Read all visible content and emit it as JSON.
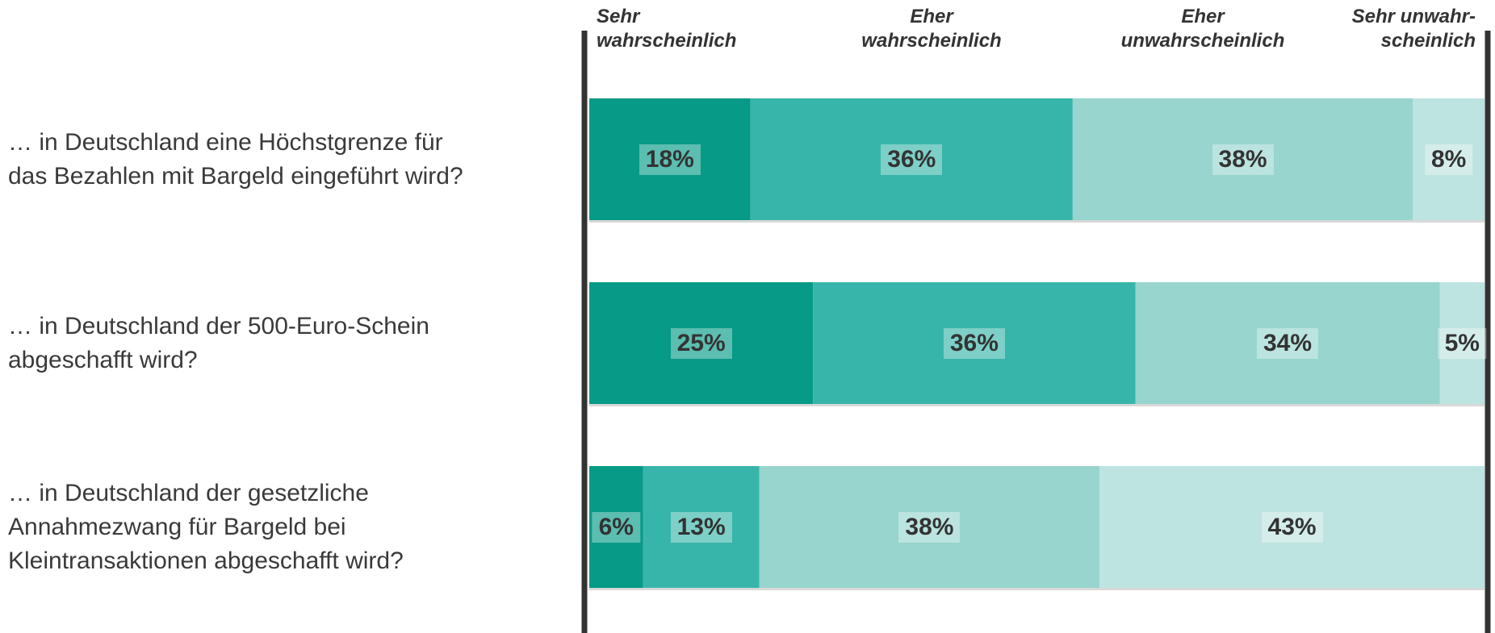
{
  "chart_data": {
    "type": "stacked-bar-horizontal",
    "categories": [
      "… in Deutschland eine Höchstgrenze für\ndas Bezahlen mit Bargeld eingeführt wird?",
      "… in Deutschland der 500-Euro-Schein\nabgeschafft wird?",
      "… in Deutschland der gesetzliche\nAnnahmezwang für Bargeld bei\nKleintransaktionen abgeschafft wird?"
    ],
    "xlim": [
      0,
      100
    ],
    "series": [
      {
        "name": "Sehr\nwahrscheinlich",
        "color": "#069a87",
        "values": [
          18,
          25,
          6
        ],
        "value_labels": [
          "18%",
          "25%",
          "6%"
        ]
      },
      {
        "name": "Eher\nwahrscheinlich",
        "color": "#38b5aa",
        "values": [
          36,
          36,
          13
        ],
        "value_labels": [
          "36%",
          "36%",
          "13%"
        ]
      },
      {
        "name": "Eher\nunwahrscheinlich",
        "color": "#97d5ce",
        "values": [
          38,
          34,
          38
        ],
        "value_labels": [
          "38%",
          "34%",
          "38%"
        ]
      },
      {
        "name": "Sehr unwahr-\nscheinlich",
        "color": "#bde4e0",
        "values": [
          8,
          5,
          43
        ],
        "value_labels": [
          "8%",
          "5%",
          "43%"
        ]
      }
    ]
  }
}
